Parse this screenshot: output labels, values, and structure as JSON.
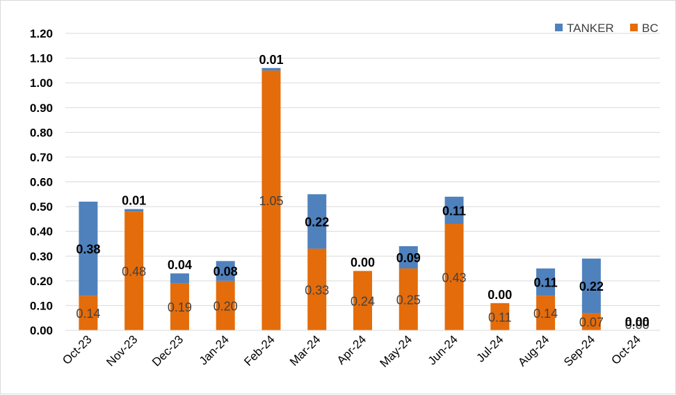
{
  "chart_data": {
    "type": "bar",
    "stacked": true,
    "categories": [
      "Oct-23",
      "Nov-23",
      "Dec-23",
      "Jan-24",
      "Feb-24",
      "Mar-24",
      "Apr-24",
      "May-24",
      "Jun-24",
      "Jul-24",
      "Aug-24",
      "Sep-24",
      "Oct-24"
    ],
    "series": [
      {
        "name": "BC",
        "color": "#e46c0a",
        "values": [
          0.14,
          0.48,
          0.19,
          0.2,
          1.05,
          0.33,
          0.24,
          0.25,
          0.43,
          0.11,
          0.14,
          0.07,
          0.0
        ],
        "labels": [
          "0.14",
          "0.48",
          "0.19",
          "0.20",
          "1.05",
          "0.33",
          "0.24",
          "0.25",
          "0.43",
          "0.11",
          "0.14",
          "0.07",
          "0.00"
        ]
      },
      {
        "name": "TANKER",
        "color": "#4f81bd",
        "values": [
          0.38,
          0.01,
          0.04,
          0.08,
          0.01,
          0.22,
          0.0,
          0.09,
          0.11,
          0.0,
          0.11,
          0.22,
          0.0
        ],
        "labels": [
          "0.38",
          "0.01",
          "0.04",
          "0.08",
          "0.01",
          "0.22",
          "0.00",
          "0.09",
          "0.11",
          "0.00",
          "0.11",
          "0.22",
          "0.00"
        ]
      }
    ],
    "yticks": [
      "0.00",
      "0.10",
      "0.20",
      "0.30",
      "0.40",
      "0.50",
      "0.60",
      "0.70",
      "0.80",
      "0.90",
      "1.00",
      "1.10",
      "1.20"
    ],
    "ylim": [
      0,
      1.2
    ],
    "grid": true,
    "legend": {
      "position": "top-right",
      "entries": [
        {
          "name": "TANKER",
          "color": "#4f81bd"
        },
        {
          "name": "BC",
          "color": "#e46c0a"
        }
      ]
    },
    "xlabel": "",
    "ylabel": "",
    "title": ""
  }
}
